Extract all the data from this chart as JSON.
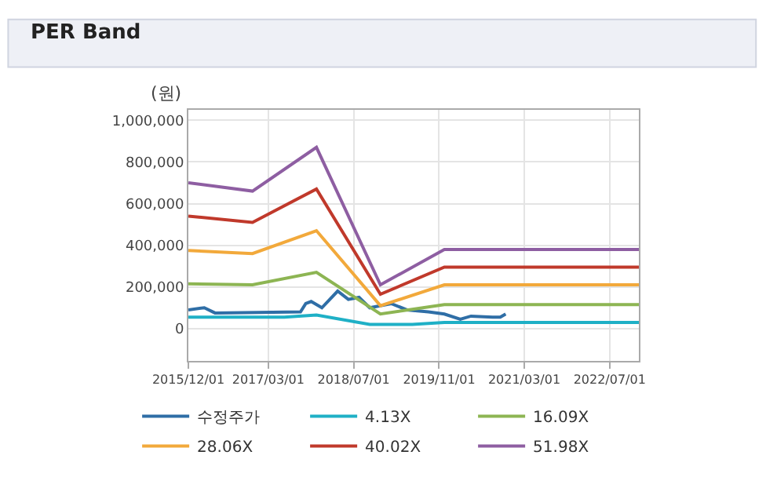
{
  "chart_data": {
    "type": "line",
    "title": "PER Band",
    "ylabel": "(원)",
    "xlim": [
      "2015-12-01",
      "2022-12-15"
    ],
    "xticks": [
      {
        "value": "2015-12-01",
        "label": "2015/12/01"
      },
      {
        "value": "2017-03-01",
        "label": "2017/03/01"
      },
      {
        "value": "2018-07-01",
        "label": "2018/07/01"
      },
      {
        "value": "2019-11-01",
        "label": "2019/11/01"
      },
      {
        "value": "2021-03-01",
        "label": "2021/03/01"
      },
      {
        "value": "2022-07-01",
        "label": "2022/07/01"
      }
    ],
    "ylim": [
      -155000,
      1050000
    ],
    "yticks": [
      {
        "value": 0,
        "label": "0"
      },
      {
        "value": 200000,
        "label": "200,000"
      },
      {
        "value": 400000,
        "label": "400,000"
      },
      {
        "value": 600000,
        "label": "600,000"
      },
      {
        "value": 800000,
        "label": "800,000"
      },
      {
        "value": 1000000,
        "label": "1,000,000"
      }
    ],
    "grid": true,
    "legend": "bottom",
    "marker": "none",
    "line_style": "solid",
    "series": [
      {
        "name": "수정주가",
        "color": "#2f6ea6",
        "x": [
          "2015-12-01",
          "2016-03-01",
          "2016-05-01",
          "2017-09-01",
          "2017-10-01",
          "2017-11-01",
          "2018-01-01",
          "2018-04-01",
          "2018-06-01",
          "2018-08-01",
          "2018-10-01",
          "2019-02-01",
          "2019-05-01",
          "2019-09-01",
          "2019-12-01",
          "2020-03-01",
          "2020-05-01",
          "2020-09-01",
          "2020-10-15",
          "2020-11-15"
        ],
        "values": [
          90000,
          100000,
          75000,
          80000,
          120000,
          130000,
          100000,
          180000,
          140000,
          150000,
          100000,
          120000,
          90000,
          80000,
          70000,
          45000,
          60000,
          55000,
          55000,
          70000
        ]
      },
      {
        "name": "4.13X",
        "color": "#1fb0c6",
        "x": [
          "2015-12-01",
          "2017-06-01",
          "2017-12-01",
          "2018-10-01",
          "2019-06-01",
          "2019-12-01",
          "2022-12-15"
        ],
        "values": [
          55000,
          55000,
          65000,
          20000,
          20000,
          30000,
          30000
        ]
      },
      {
        "name": "16.09X",
        "color": "#8db553",
        "x": [
          "2015-12-01",
          "2016-12-01",
          "2017-12-01",
          "2018-12-01",
          "2019-12-01",
          "2022-12-15"
        ],
        "values": [
          215000,
          210000,
          270000,
          70000,
          115000,
          115000
        ]
      },
      {
        "name": "28.06X",
        "color": "#f2a93b",
        "x": [
          "2015-12-01",
          "2016-12-01",
          "2017-12-01",
          "2018-12-01",
          "2019-12-01",
          "2022-12-15"
        ],
        "values": [
          375000,
          360000,
          470000,
          110000,
          210000,
          210000
        ]
      },
      {
        "name": "40.02X",
        "color": "#c0392b",
        "x": [
          "2015-12-01",
          "2016-12-01",
          "2017-12-01",
          "2018-12-01",
          "2019-12-01",
          "2022-12-15"
        ],
        "values": [
          540000,
          510000,
          670000,
          165000,
          295000,
          295000
        ]
      },
      {
        "name": "51.98X",
        "color": "#8e5ea2",
        "x": [
          "2015-12-01",
          "2016-12-01",
          "2017-12-01",
          "2018-12-01",
          "2019-12-01",
          "2022-12-15"
        ],
        "values": [
          700000,
          660000,
          870000,
          210000,
          380000,
          380000
        ]
      }
    ]
  }
}
